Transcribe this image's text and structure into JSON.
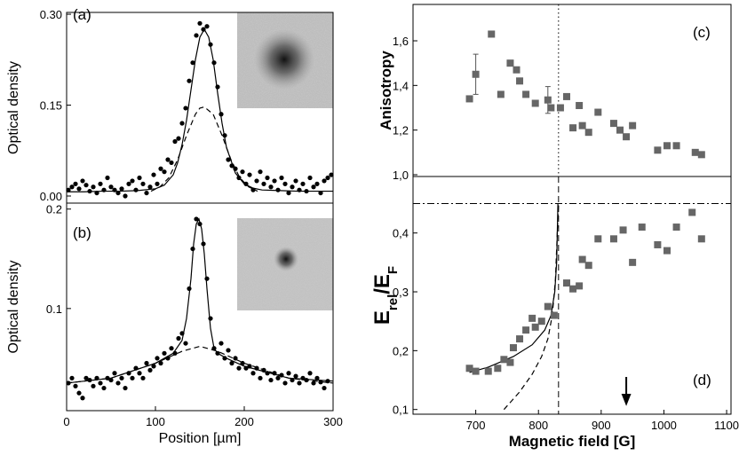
{
  "chart_data": [
    {
      "type": "scatter",
      "label": "(a)",
      "ylabel": "Optical density",
      "marker": "circle",
      "color": "#000000",
      "xlim": [
        0,
        300
      ],
      "ylim": [
        -0.0117,
        0.303
      ],
      "yticks": [
        {
          "value": 0.3,
          "label": "0.30"
        },
        {
          "value": 0.15,
          "label": "0.15"
        },
        {
          "value": 0,
          "label": "0.00"
        }
      ],
      "points": {
        "x": [
          2,
          6,
          10,
          14,
          18,
          22,
          26,
          30,
          34,
          38,
          42,
          46,
          50,
          54,
          58,
          62,
          66,
          70,
          74,
          78,
          82,
          86,
          90,
          94,
          98,
          102,
          106,
          110,
          114,
          118,
          122,
          126,
          130,
          134,
          138,
          142,
          146,
          150,
          154,
          158,
          162,
          166,
          170,
          174,
          178,
          182,
          186,
          190,
          194,
          198,
          202,
          206,
          210,
          214,
          218,
          222,
          226,
          230,
          234,
          238,
          242,
          246,
          250,
          254,
          258,
          262,
          266,
          270,
          274,
          278,
          282,
          286,
          290,
          294,
          298
        ],
        "y": [
          0.01,
          0.015,
          0.02,
          0.012,
          0.025,
          0.018,
          0.008,
          0.015,
          0.005,
          0.02,
          0.01,
          0.03,
          0.015,
          0.01,
          0.005,
          0.012,
          0,
          0.02,
          0.025,
          0.01,
          0.03,
          0.02,
          0.005,
          0.015,
          0.035,
          0.02,
          0.045,
          0.04,
          0.06,
          0.055,
          0.09,
          0.095,
          0.12,
          0.145,
          0.19,
          0.22,
          0.265,
          0.285,
          0.275,
          0.28,
          0.25,
          0.22,
          0.18,
          0.135,
          0.1,
          0.06,
          0.05,
          0.045,
          0.03,
          0.04,
          0.02,
          0.035,
          0.01,
          0.025,
          0.04,
          0.02,
          0.03,
          0.015,
          0.025,
          0.01,
          0.03,
          0.02,
          0.005,
          0.015,
          0.025,
          0.01,
          0.02,
          0.008,
          0.03,
          0.015,
          0.02,
          0.005,
          0.025,
          0.03,
          0.035
        ]
      },
      "lines": [
        {
          "style": "solid",
          "x": [
            0,
            20,
            40,
            60,
            80,
            100,
            110,
            120,
            125,
            130,
            135,
            140,
            145,
            150,
            155,
            160,
            165,
            170,
            175,
            180,
            190,
            200,
            210,
            220,
            240,
            260,
            280,
            300
          ],
          "y": [
            0.007,
            0.007,
            0.008,
            0.008,
            0.009,
            0.012,
            0.018,
            0.035,
            0.055,
            0.085,
            0.125,
            0.175,
            0.225,
            0.262,
            0.275,
            0.262,
            0.225,
            0.17,
            0.12,
            0.08,
            0.038,
            0.02,
            0.013,
            0.01,
            0.009,
            0.008,
            0.008,
            0.008
          ]
        },
        {
          "style": "dashed",
          "x": [
            95,
            105,
            115,
            125,
            135,
            145,
            150,
            155,
            165,
            175,
            185,
            195,
            205,
            215
          ],
          "y": [
            0.008,
            0.015,
            0.03,
            0.06,
            0.1,
            0.135,
            0.145,
            0.147,
            0.135,
            0.1,
            0.06,
            0.03,
            0.015,
            0.008
          ]
        }
      ]
    },
    {
      "type": "scatter",
      "label": "(b)",
      "ylabel": "Optical density",
      "xlabel": "Position [µm]",
      "marker": "circle",
      "color": "#000000",
      "xlim": [
        0,
        300
      ],
      "ylim": [
        -0.0027,
        0.206
      ],
      "xticks": [
        0,
        100,
        200,
        300
      ],
      "yticks": [
        0.2,
        0.1
      ],
      "points": {
        "x": [
          2,
          6,
          10,
          14,
          18,
          22,
          26,
          30,
          34,
          38,
          42,
          46,
          50,
          54,
          58,
          62,
          66,
          70,
          74,
          78,
          82,
          86,
          90,
          94,
          98,
          102,
          106,
          110,
          114,
          118,
          122,
          126,
          130,
          134,
          138,
          142,
          146,
          150,
          154,
          158,
          162,
          166,
          170,
          174,
          178,
          182,
          186,
          190,
          194,
          198,
          202,
          206,
          210,
          214,
          218,
          222,
          226,
          230,
          234,
          238,
          242,
          246,
          250,
          254,
          258,
          262,
          266,
          270,
          274,
          278,
          282,
          286,
          290,
          294
        ],
        "y": [
          0.025,
          0.03,
          0.022,
          0.015,
          0.01,
          0.03,
          0.028,
          0.022,
          0.03,
          0.025,
          0.02,
          0.03,
          0.028,
          0.035,
          0.025,
          0.03,
          0.02,
          0.035,
          0.03,
          0.04,
          0.035,
          0.03,
          0.045,
          0.038,
          0.042,
          0.05,
          0.045,
          0.055,
          0.05,
          0.06,
          0.055,
          0.07,
          0.075,
          0.065,
          0.12,
          0.16,
          0.19,
          0.185,
          0.165,
          0.13,
          0.09,
          0.06,
          0.055,
          0.065,
          0.05,
          0.058,
          0.045,
          0.05,
          0.04,
          0.045,
          0.04,
          0.042,
          0.035,
          0.04,
          0.03,
          0.038,
          0.035,
          0.028,
          0.035,
          0.03,
          0.033,
          0.025,
          0.035,
          0.028,
          0.032,
          0.025,
          0.03,
          0.028,
          0.035,
          0.025,
          0.03,
          0.026,
          0.02,
          0.027
        ]
      },
      "lines": [
        {
          "style": "solid",
          "x": [
            0,
            50,
            100,
            120,
            130,
            135,
            140,
            143,
            146,
            149,
            152,
            155,
            158,
            162,
            166,
            170,
            180,
            200,
            250,
            300
          ],
          "y": [
            0.025,
            0.03,
            0.045,
            0.055,
            0.068,
            0.09,
            0.13,
            0.165,
            0.185,
            0.19,
            0.18,
            0.155,
            0.12,
            0.08,
            0.06,
            0.055,
            0.05,
            0.042,
            0.03,
            0.027
          ]
        },
        {
          "style": "dashed",
          "x": [
            0,
            50,
            100,
            130,
            150,
            170,
            200,
            250,
            300
          ],
          "y": [
            0.025,
            0.03,
            0.045,
            0.057,
            0.062,
            0.057,
            0.045,
            0.03,
            0.025
          ]
        }
      ]
    },
    {
      "type": "scatter",
      "label": "(c)",
      "ylabel": "Anisotropy",
      "marker": "square",
      "color": "#666666",
      "xlim": [
        600,
        1107
      ],
      "ylim": [
        0.992,
        1.763
      ],
      "yticks": [
        {
          "value": 1.6,
          "label": "1,6"
        },
        {
          "value": 1.4,
          "label": "1,4"
        },
        {
          "value": 1.2,
          "label": "1,2"
        },
        {
          "value": 1.0,
          "label": "1,0"
        }
      ],
      "points": {
        "x": [
          690,
          700,
          725,
          740,
          755,
          765,
          770,
          780,
          795,
          815,
          820,
          835,
          845,
          855,
          865,
          870,
          880,
          895,
          920,
          930,
          940,
          950,
          990,
          1005,
          1020,
          1050,
          1060
        ],
        "y": [
          1.34,
          1.45,
          1.63,
          1.36,
          1.5,
          1.47,
          1.42,
          1.36,
          1.32,
          1.335,
          1.3,
          1.3,
          1.35,
          1.21,
          1.31,
          1.22,
          1.19,
          1.28,
          1.23,
          1.2,
          1.17,
          1.22,
          1.11,
          1.13,
          1.13,
          1.1,
          1.09
        ],
        "errors": [
          null,
          0.09,
          null,
          null,
          null,
          null,
          null,
          null,
          null,
          0.06,
          null,
          null,
          null,
          null,
          null,
          null,
          null,
          null,
          null,
          null,
          null,
          null,
          null,
          null,
          null,
          null,
          null
        ]
      },
      "lines": [],
      "vline": 832,
      "vline_style": "dotted"
    },
    {
      "type": "scatter",
      "label": "(d)",
      "ylabel_parts": [
        "E",
        "rel",
        "/E",
        "F"
      ],
      "xlabel": "Magnetic field [G]",
      "marker": "square",
      "color": "#666666",
      "xlim": [
        600,
        1107
      ],
      "ylim": [
        0.092,
        0.496
      ],
      "xticks": [
        700,
        800,
        900,
        1000,
        1100
      ],
      "yticks": [
        {
          "value": 0.4,
          "label": "0,4"
        },
        {
          "value": 0.3,
          "label": "0,3"
        },
        {
          "value": 0.2,
          "label": "0,2"
        },
        {
          "value": 0.1,
          "label": "0,1"
        }
      ],
      "points": {
        "x": [
          690,
          700,
          720,
          735,
          745,
          755,
          760,
          770,
          780,
          790,
          795,
          805,
          815,
          825,
          845,
          855,
          865,
          870,
          880,
          895,
          920,
          935,
          950,
          965,
          990,
          1005,
          1020,
          1045,
          1060
        ],
        "y": [
          0.17,
          0.165,
          0.165,
          0.17,
          0.185,
          0.18,
          0.205,
          0.22,
          0.235,
          0.255,
          0.24,
          0.25,
          0.275,
          0.26,
          0.315,
          0.305,
          0.31,
          0.355,
          0.345,
          0.39,
          0.39,
          0.405,
          0.35,
          0.41,
          0.38,
          0.37,
          0.41,
          0.435,
          0.39
        ]
      },
      "lines": [
        {
          "style": "solid",
          "x": [
            690,
            720,
            760,
            790,
            810,
            820,
            826,
            829,
            831
          ],
          "y": [
            0.163,
            0.172,
            0.19,
            0.21,
            0.235,
            0.26,
            0.3,
            0.35,
            0.45
          ]
        },
        {
          "style": "dashed",
          "x": [
            745,
            770,
            790,
            805,
            815,
            822,
            827,
            830,
            832
          ],
          "y": [
            0.1,
            0.13,
            0.16,
            0.19,
            0.22,
            0.26,
            0.32,
            0.4,
            0.45
          ]
        }
      ],
      "vline": 832,
      "vline_style": "longdash",
      "hline": 0.45,
      "arrow_x": 940
    }
  ]
}
